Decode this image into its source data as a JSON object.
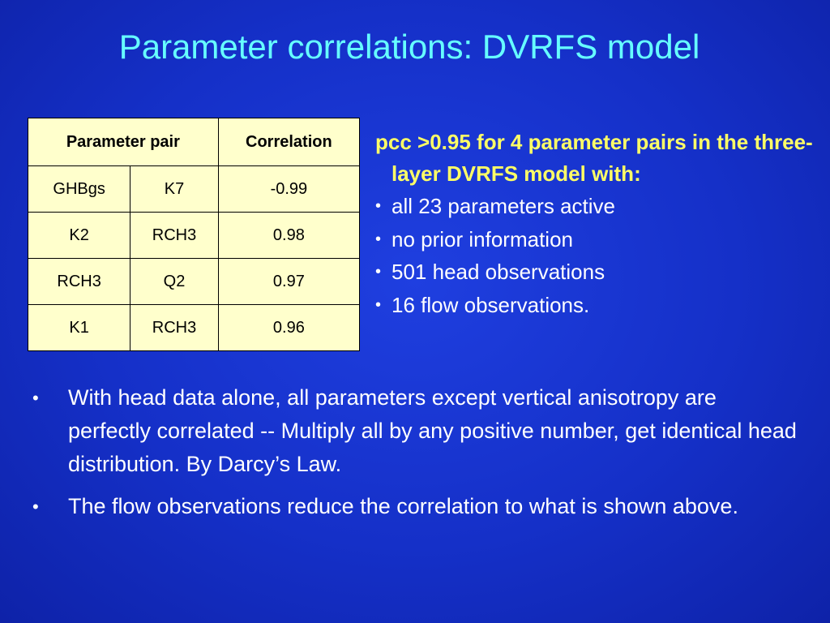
{
  "slide": {
    "title": "Parameter correlations: DVRFS model"
  },
  "table": {
    "headers": [
      "Parameter pair",
      "Correlation"
    ],
    "rows": [
      {
        "param_a": "GHBgs",
        "param_b": "K7",
        "correlation": "-0.99"
      },
      {
        "param_a": "K2",
        "param_b": "RCH3",
        "correlation": "0.98"
      },
      {
        "param_a": "RCH3",
        "param_b": "Q2",
        "correlation": "0.97"
      },
      {
        "param_a": "K1",
        "param_b": "RCH3",
        "correlation": "0.96"
      }
    ]
  },
  "side": {
    "heading": "pcc >0.95 for 4 parameter pairs in the three-layer DVRFS model with:",
    "bullet_glyph": "•",
    "items": [
      "all 23 parameters active",
      "no prior information",
      "501 head observations",
      "16 flow observations."
    ]
  },
  "main": {
    "bullet_glyph": "•",
    "items": [
      "With head data alone, all parameters except vertical anisotropy are perfectly correlated -- Multiply all by any positive number, get identical head distribution. By Darcy’s Law.",
      "The flow observations reduce the correlation to what is shown above."
    ]
  },
  "colors": {
    "background": "#1530c8",
    "title": "#66ffff",
    "heading": "#ffff66",
    "table_fill": "#ffffcc"
  }
}
